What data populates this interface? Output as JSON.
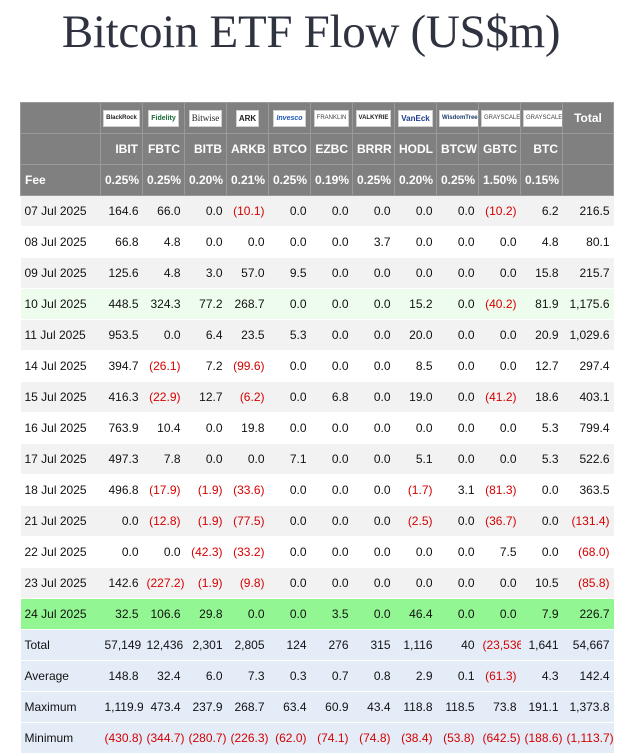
{
  "title": "Bitcoin ETF Flow (US$m)",
  "logos": [
    "BlackRock",
    "Fidelity",
    "Bitwise",
    "ARK",
    "Invesco",
    "FRANKLIN",
    "VALKYRIE",
    "VanEck",
    "WisdomTree",
    "GRAYSCALE",
    "GRAYSCALE"
  ],
  "total_header": "Total",
  "tickers": [
    "IBIT",
    "FBTC",
    "BITB",
    "ARKB",
    "BTCO",
    "EZBC",
    "BRRR",
    "HODL",
    "BTCW",
    "GBTC",
    "BTC"
  ],
  "fee_label": "Fee",
  "fees": [
    "0.25%",
    "0.25%",
    "0.20%",
    "0.21%",
    "0.25%",
    "0.19%",
    "0.25%",
    "0.20%",
    "0.25%",
    "1.50%",
    "0.15%"
  ],
  "rows": [
    {
      "date": "07 Jul 2025",
      "values": [
        "164.6",
        "66.0",
        "0.0",
        "(10.1)",
        "0.0",
        "0.0",
        "0.0",
        "0.0",
        "0.0",
        "(10.2)",
        "6.2"
      ],
      "total": "216.5"
    },
    {
      "date": "08 Jul 2025",
      "values": [
        "66.8",
        "4.8",
        "0.0",
        "0.0",
        "0.0",
        "0.0",
        "3.7",
        "0.0",
        "0.0",
        "0.0",
        "4.8"
      ],
      "total": "80.1"
    },
    {
      "date": "09 Jul 2025",
      "values": [
        "125.6",
        "4.8",
        "3.0",
        "57.0",
        "9.5",
        "0.0",
        "0.0",
        "0.0",
        "0.0",
        "0.0",
        "15.8"
      ],
      "total": "215.7"
    },
    {
      "date": "10 Jul 2025",
      "values": [
        "448.5",
        "324.3",
        "77.2",
        "268.7",
        "0.0",
        "0.0",
        "0.0",
        "15.2",
        "0.0",
        "(40.2)",
        "81.9"
      ],
      "total": "1,175.6"
    },
    {
      "date": "11 Jul 2025",
      "values": [
        "953.5",
        "0.0",
        "6.4",
        "23.5",
        "5.3",
        "0.0",
        "0.0",
        "20.0",
        "0.0",
        "0.0",
        "20.9"
      ],
      "total": "1,029.6"
    },
    {
      "date": "14 Jul 2025",
      "values": [
        "394.7",
        "(26.1)",
        "7.2",
        "(99.6)",
        "0.0",
        "0.0",
        "0.0",
        "8.5",
        "0.0",
        "0.0",
        "12.7"
      ],
      "total": "297.4"
    },
    {
      "date": "15 Jul 2025",
      "values": [
        "416.3",
        "(22.9)",
        "12.7",
        "(6.2)",
        "0.0",
        "6.8",
        "0.0",
        "19.0",
        "0.0",
        "(41.2)",
        "18.6"
      ],
      "total": "403.1"
    },
    {
      "date": "16 Jul 2025",
      "values": [
        "763.9",
        "10.4",
        "0.0",
        "19.8",
        "0.0",
        "0.0",
        "0.0",
        "0.0",
        "0.0",
        "0.0",
        "5.3"
      ],
      "total": "799.4"
    },
    {
      "date": "17 Jul 2025",
      "values": [
        "497.3",
        "7.8",
        "0.0",
        "0.0",
        "7.1",
        "0.0",
        "0.0",
        "5.1",
        "0.0",
        "0.0",
        "5.3"
      ],
      "total": "522.6"
    },
    {
      "date": "18 Jul 2025",
      "values": [
        "496.8",
        "(17.9)",
        "(1.9)",
        "(33.6)",
        "0.0",
        "0.0",
        "0.0",
        "(1.7)",
        "3.1",
        "(81.3)",
        "0.0"
      ],
      "total": "363.5"
    },
    {
      "date": "21 Jul 2025",
      "values": [
        "0.0",
        "(12.8)",
        "(1.9)",
        "(77.5)",
        "0.0",
        "0.0",
        "0.0",
        "(2.5)",
        "0.0",
        "(36.7)",
        "0.0"
      ],
      "total": "(131.4)"
    },
    {
      "date": "22 Jul 2025",
      "values": [
        "0.0",
        "0.0",
        "(42.3)",
        "(33.2)",
        "0.0",
        "0.0",
        "0.0",
        "0.0",
        "0.0",
        "7.5",
        "0.0"
      ],
      "total": "(68.0)"
    },
    {
      "date": "23 Jul 2025",
      "values": [
        "142.6",
        "(227.2)",
        "(1.9)",
        "(9.8)",
        "0.0",
        "0.0",
        "0.0",
        "0.0",
        "0.0",
        "0.0",
        "10.5"
      ],
      "total": "(85.8)"
    },
    {
      "date": "24 Jul 2025",
      "values": [
        "32.5",
        "106.6",
        "29.8",
        "0.0",
        "0.0",
        "3.5",
        "0.0",
        "46.4",
        "0.0",
        "0.0",
        "7.9"
      ],
      "total": "226.7"
    }
  ],
  "summary": [
    {
      "label": "Total",
      "values": [
        "57,149",
        "12,436",
        "2,301",
        "2,805",
        "124",
        "276",
        "315",
        "1,116",
        "40",
        "(23,536)",
        "1,641"
      ],
      "total": "54,667"
    },
    {
      "label": "Average",
      "values": [
        "148.8",
        "32.4",
        "6.0",
        "7.3",
        "0.3",
        "0.7",
        "0.8",
        "2.9",
        "0.1",
        "(61.3)",
        "4.3"
      ],
      "total": "142.4"
    },
    {
      "label": "Maximum",
      "values": [
        "1,119.9",
        "473.4",
        "237.9",
        "268.7",
        "63.4",
        "60.9",
        "43.4",
        "118.8",
        "118.5",
        "73.8",
        "191.1"
      ],
      "total": "1,373.8"
    },
    {
      "label": "Minimum",
      "values": [
        "(430.8)",
        "(344.7)",
        "(280.7)",
        "(226.3)",
        "(62.0)",
        "(74.1)",
        "(74.8)",
        "(38.4)",
        "(53.8)",
        "(642.5)",
        "(188.6)"
      ],
      "total": "(1,113.7)"
    }
  ]
}
